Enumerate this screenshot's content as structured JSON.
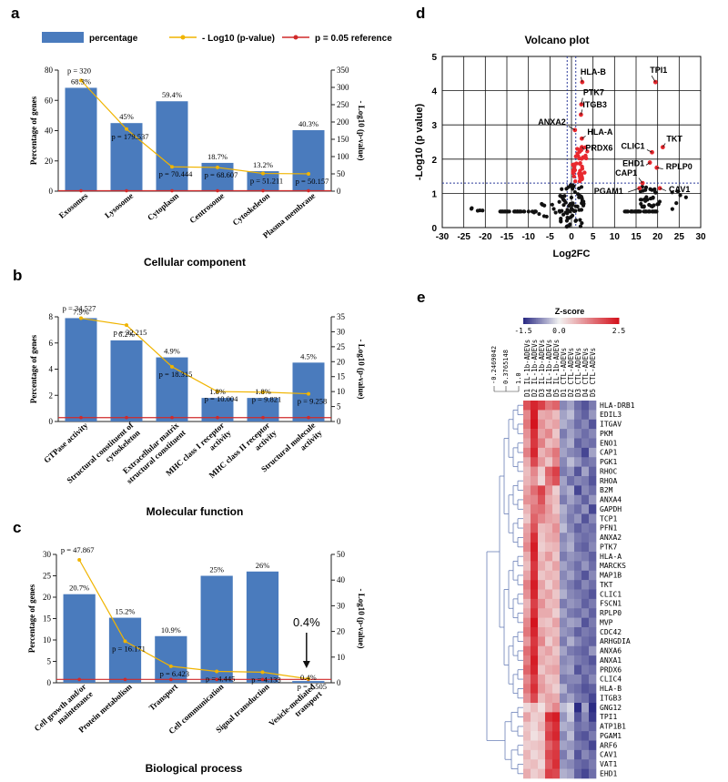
{
  "chart_data": [
    {
      "panel": "a",
      "type": "bar",
      "xlabel": "Cellular component",
      "ylabel": "Percentage of genes",
      "y2label": "- Log10 (p-value)",
      "ylim": [
        0,
        80
      ],
      "y2lim": [
        0,
        350
      ],
      "yticks": [
        0,
        20,
        40,
        60,
        80
      ],
      "y2ticks": [
        0,
        50,
        100,
        150,
        200,
        250,
        300,
        350
      ],
      "categories": [
        "Exosomes",
        "Lysosome",
        "Cytoplasm",
        "Centrosome",
        "Cytoskeleton",
        "Plasma membrane"
      ],
      "values": [
        68.3,
        45,
        59.4,
        18.7,
        13.2,
        40.3
      ],
      "value_labels": [
        "68.3%",
        "45%",
        "59.4%",
        "18.7%",
        "13.2%",
        "40.3%"
      ],
      "line": [
        320,
        179.537,
        70.444,
        68.607,
        51.211,
        50.157
      ],
      "line_labels": [
        "p = 320",
        "p = 179.537",
        "p = 70.444",
        "p = 68.607",
        "p = 51.211",
        "p = 50.157"
      ],
      "reference": 1.301,
      "legend": [
        "percentage",
        "- Log10 (p-value)",
        "p = 0.05 reference"
      ]
    },
    {
      "panel": "b",
      "type": "bar",
      "xlabel": "Molecular function",
      "ylabel": "Percentage of genes",
      "y2label": "- Log10 (p-value)",
      "ylim": [
        0,
        8
      ],
      "y2lim": [
        0,
        35
      ],
      "yticks": [
        0,
        2,
        4,
        6,
        8
      ],
      "y2ticks": [
        0,
        5,
        10,
        15,
        20,
        25,
        30,
        35
      ],
      "categories": [
        "GTPase activity",
        "Structural constituent of cytoskeleton",
        "Extracellular matrix structural constituent",
        "MHC class I receptor activity",
        "MHC class II receptor activity",
        "Structural molecule activity"
      ],
      "xtick_lines": [
        [
          "GTPase activity"
        ],
        [
          "Structural constituent of",
          "cytoskeleton"
        ],
        [
          "Extracellular matrix",
          "structural constituent"
        ],
        [
          "MHC class I receptor",
          "activity"
        ],
        [
          "MHC class II receptor",
          "activity"
        ],
        [
          "Structural molecule",
          "activity"
        ]
      ],
      "values": [
        7.9,
        6.2,
        4.9,
        1.8,
        1.8,
        4.5
      ],
      "value_labels": [
        "7.9%",
        "6.2%",
        "4.9%",
        "1.8%",
        "1.8%",
        "4.5%"
      ],
      "line": [
        34.527,
        32.215,
        18.315,
        10.004,
        9.821,
        9.258
      ],
      "line_labels": [
        "p = 34.527",
        "p = 32.215",
        "p = 18.315",
        "p = 10.004",
        "p = 9.821",
        "p = 9.258"
      ],
      "reference": 1.301
    },
    {
      "panel": "c",
      "type": "bar",
      "xlabel": "Biological process",
      "ylabel": "Percentage of genes",
      "y2label": "- Log10 (p-value)",
      "ylim": [
        0,
        30
      ],
      "y2lim": [
        0,
        50
      ],
      "yticks": [
        0,
        5,
        10,
        15,
        20,
        25,
        30
      ],
      "y2ticks": [
        0,
        10,
        20,
        30,
        40,
        50
      ],
      "categories": [
        "Cell growth and/or maintenance",
        "Protein metabolism",
        "Transport",
        "Cell communication",
        "Signal transduction",
        "Vesicle-mediated transport"
      ],
      "xtick_lines": [
        [
          "Cell growth and/or",
          "maintenance"
        ],
        [
          "Protein metabolism"
        ],
        [
          "Transport"
        ],
        [
          "Cell communication"
        ],
        [
          "Signal transduction"
        ],
        [
          "Vesicle-mediated",
          "transport"
        ]
      ],
      "values": [
        20.7,
        15.2,
        10.9,
        25,
        26,
        0.4
      ],
      "value_labels": [
        "20.7%",
        "15.2%",
        "10.9%",
        "25%",
        "26%",
        "0.4%"
      ],
      "line": [
        47.867,
        16.171,
        6.423,
        4.445,
        4.133,
        1.505
      ],
      "line_labels": [
        "p = 47.867",
        "p = 16.171",
        "p = 6.423",
        "p = 4.445",
        "p = 4.133",
        "p = 1.505"
      ],
      "reference": 1.301,
      "callout": "0.4%"
    },
    {
      "panel": "d",
      "type": "scatter",
      "title": "Volcano plot",
      "xlabel": "Log2FC",
      "ylabel": "-Log10 (p value)",
      "xlim": [
        -30,
        30
      ],
      "ylim": [
        0,
        5
      ],
      "xticks": [
        -30,
        -25,
        -20,
        -15,
        -10,
        -5,
        0,
        5,
        10,
        15,
        20,
        25,
        30
      ],
      "yticks": [
        0,
        1,
        2,
        3,
        4,
        5
      ],
      "threshold_y": 1.301,
      "threshold_x": [
        -1,
        1
      ],
      "labeled_points": [
        {
          "label": "HLA-B",
          "x": 2.5,
          "y": 4.25
        },
        {
          "label": "TPI1",
          "x": 19.5,
          "y": 4.25
        },
        {
          "label": "PTK7",
          "x": 2.3,
          "y": 3.6
        },
        {
          "label": "ITGB3",
          "x": 2.2,
          "y": 3.3
        },
        {
          "label": "ANXA2",
          "x": 0.8,
          "y": 2.85
        },
        {
          "label": "HLA-A",
          "x": 2.4,
          "y": 2.6
        },
        {
          "label": "PRDX6",
          "x": 2.4,
          "y": 2.35
        },
        {
          "label": "TKT",
          "x": 21.2,
          "y": 2.35
        },
        {
          "label": "CLIC1",
          "x": 18.7,
          "y": 2.2
        },
        {
          "label": "EHD1",
          "x": 18.2,
          "y": 1.9
        },
        {
          "label": "RPLP0",
          "x": 19.8,
          "y": 1.75
        },
        {
          "label": "CAP1",
          "x": 16.5,
          "y": 1.3
        },
        {
          "label": "PGAM1",
          "x": 15.8,
          "y": 1.15
        },
        {
          "label": "CAV1",
          "x": 20.5,
          "y": 1.15
        }
      ],
      "colors": {
        "significant": "#e8282e",
        "other": "#111111",
        "threshold": "#2b3a9a"
      }
    },
    {
      "panel": "e",
      "type": "heatmap",
      "legend_title": "Z-score",
      "scale_ticks": [
        "-1.5",
        "0.0",
        "2.5"
      ],
      "dendrogram_ticks": [
        "-0.2469042",
        "0.3765148",
        "1.0"
      ],
      "columns": [
        "D1 IL-1b-ADEVs",
        "D2 IL-1b-ADEVs",
        "D3 IL-1b-ADEVs",
        "D4 IL-1b-ADEVs",
        "D5 IL-1b-ADEVs",
        "D1 CTL-ADEVs",
        "D2 CTL-ADEVs",
        "D3 CTL-ADEVs",
        "D4 CTL-ADEVs",
        "D5 CTL-ADEVs"
      ],
      "rows": [
        "HLA-DRB1",
        "EDIL3",
        "ITGAV",
        "PKM",
        "ENO1",
        "CAP1",
        "PGK1",
        "RHOC",
        "RHOA",
        "B2M",
        "ANXA4",
        "GAPDH",
        "TCP1",
        "PFN1",
        "ANXA2",
        "PTK7",
        "HLA-A",
        "MARCKS",
        "MAP1B",
        "TKT",
        "CLIC1",
        "FSCN1",
        "RPLP0",
        "MVP",
        "CDC42",
        "ARHGDIA",
        "ANXA6",
        "ANXA1",
        "PRDX6",
        "CLIC4",
        "HLA-B",
        "ITGB3",
        "GNG12",
        "TPI1",
        "ATP1B1",
        "PGAM1",
        "ARF6",
        "CAV1",
        "VAT1",
        "EHD1"
      ],
      "values": [
        [
          1.8,
          2.3,
          2.0,
          1.4,
          1.6,
          -0.8,
          -0.6,
          -1.0,
          -1.2,
          -0.9
        ],
        [
          1.2,
          2.4,
          0.8,
          0.9,
          0.6,
          -0.6,
          -0.4,
          -0.9,
          -1.1,
          -0.7
        ],
        [
          1.4,
          2.5,
          1.1,
          0.7,
          0.9,
          -0.5,
          -0.7,
          -1.0,
          -0.8,
          -1.2
        ],
        [
          1.1,
          2.2,
          0.9,
          1.2,
          0.5,
          -0.9,
          -0.6,
          -0.8,
          -1.0,
          -0.8
        ],
        [
          0.9,
          2.1,
          1.3,
          0.6,
          0.8,
          -0.7,
          -0.5,
          -1.1,
          -0.9,
          -1.0
        ],
        [
          1.3,
          2.3,
          0.7,
          1.0,
          1.4,
          -0.6,
          -0.8,
          -0.9,
          -1.3,
          -0.6
        ],
        [
          0.8,
          1.9,
          1.0,
          0.5,
          1.2,
          -0.8,
          -0.4,
          -0.7,
          -1.0,
          -0.9
        ],
        [
          0.6,
          1.2,
          0.4,
          1.6,
          2.0,
          -0.9,
          -0.7,
          -1.2,
          -0.6,
          -1.1
        ],
        [
          0.7,
          1.0,
          0.3,
          1.4,
          1.8,
          -0.6,
          -1.0,
          -0.8,
          -0.9,
          -1.2
        ],
        [
          0.9,
          1.5,
          2.0,
          1.1,
          0.4,
          -0.7,
          -0.5,
          -1.3,
          -0.8,
          -1.0
        ],
        [
          1.1,
          1.2,
          1.8,
          0.8,
          0.6,
          -0.9,
          -0.6,
          -0.8,
          -1.1,
          -0.7
        ],
        [
          0.7,
          1.4,
          1.5,
          1.0,
          0.5,
          -0.5,
          -0.8,
          -1.0,
          -0.7,
          -1.3
        ],
        [
          0.5,
          1.6,
          1.2,
          0.9,
          0.8,
          -0.6,
          -0.9,
          -0.7,
          -1.2,
          -0.8
        ],
        [
          0.9,
          1.8,
          0.6,
          0.7,
          1.1,
          -0.4,
          -0.8,
          -1.1,
          -0.9,
          -1.0
        ],
        [
          1.0,
          2.2,
          0.5,
          0.8,
          0.9,
          -0.8,
          -0.6,
          -0.9,
          -1.0,
          -0.9
        ],
        [
          1.2,
          2.4,
          0.4,
          0.6,
          0.7,
          -0.7,
          -0.5,
          -1.0,
          -1.1,
          -0.8
        ],
        [
          0.8,
          2.3,
          0.6,
          1.0,
          0.5,
          -0.9,
          -0.7,
          -0.8,
          -0.9,
          -1.1
        ],
        [
          0.6,
          2.1,
          0.8,
          0.5,
          0.9,
          -0.6,
          -0.8,
          -1.0,
          -0.7,
          -1.0
        ],
        [
          0.9,
          2.2,
          0.5,
          0.7,
          0.6,
          -0.8,
          -0.6,
          -0.9,
          -1.2,
          -0.8
        ],
        [
          1.3,
          2.4,
          0.9,
          0.4,
          0.8,
          -0.7,
          -0.9,
          -1.1,
          -0.8,
          -1.0
        ],
        [
          1.1,
          2.3,
          0.7,
          0.9,
          0.5,
          -0.5,
          -0.8,
          -0.9,
          -1.0,
          -1.2
        ],
        [
          0.7,
          2.0,
          1.1,
          0.6,
          0.7,
          -0.9,
          -0.7,
          -0.8,
          -1.1,
          -0.9
        ],
        [
          0.9,
          2.2,
          0.8,
          0.8,
          0.4,
          -0.6,
          -0.9,
          -1.0,
          -0.8,
          -1.1
        ],
        [
          1.2,
          2.5,
          0.6,
          0.5,
          0.9,
          -0.8,
          -0.6,
          -0.7,
          -1.2,
          -0.9
        ],
        [
          1.4,
          2.3,
          0.9,
          0.7,
          0.6,
          -0.7,
          -0.8,
          -1.1,
          -0.9,
          -1.0
        ],
        [
          1.0,
          2.1,
          1.2,
          0.4,
          0.8,
          -0.9,
          -0.5,
          -0.8,
          -1.0,
          -1.1
        ],
        [
          1.5,
          2.2,
          0.7,
          0.9,
          0.5,
          -0.6,
          -0.9,
          -1.0,
          -1.1,
          -0.7
        ],
        [
          1.3,
          2.4,
          0.8,
          0.6,
          0.7,
          -0.8,
          -0.7,
          -0.9,
          -1.0,
          -1.2
        ],
        [
          1.6,
          2.3,
          0.5,
          0.8,
          0.9,
          -0.7,
          -0.6,
          -1.2,
          -0.9,
          -1.0
        ],
        [
          1.2,
          2.0,
          0.9,
          0.5,
          0.6,
          -0.9,
          -0.8,
          -0.8,
          -1.1,
          -0.8
        ],
        [
          1.4,
          2.2,
          1.0,
          0.7,
          0.4,
          -0.5,
          -0.9,
          -1.0,
          -1.2,
          -1.1
        ],
        [
          1.1,
          1.9,
          0.6,
          0.9,
          0.8,
          -0.8,
          -0.6,
          -0.9,
          -1.0,
          -1.3
        ],
        [
          0.3,
          0.6,
          0.2,
          0.8,
          1.2,
          -0.4,
          -0.2,
          -1.5,
          -0.6,
          -1.6
        ],
        [
          0.9,
          0.4,
          0.5,
          2.2,
          2.4,
          -0.7,
          -0.3,
          -1.2,
          -0.8,
          -1.4
        ],
        [
          0.5,
          0.3,
          0.7,
          1.8,
          2.2,
          -0.5,
          -0.6,
          -1.0,
          -0.9,
          -1.1
        ],
        [
          0.6,
          0.2,
          0.4,
          2.0,
          2.3,
          -0.8,
          -0.4,
          -1.1,
          -1.2,
          -0.9
        ],
        [
          0.4,
          0.5,
          0.6,
          1.6,
          2.0,
          -0.6,
          -0.7,
          -0.9,
          -1.0,
          -1.3
        ],
        [
          0.7,
          0.3,
          0.5,
          1.9,
          2.1,
          -0.9,
          -0.5,
          -1.2,
          -0.8,
          -1.0
        ],
        [
          0.5,
          0.6,
          0.3,
          1.7,
          2.2,
          -0.7,
          -0.8,
          -1.0,
          -1.1,
          -0.9
        ],
        [
          0.8,
          0.4,
          0.6,
          2.0,
          1.9,
          -0.5,
          -0.6,
          -1.1,
          -1.3,
          -1.0
        ]
      ]
    }
  ],
  "colors": {
    "bar": "#4a7bbd",
    "line": "#f0b400",
    "reference": "#d12a2a",
    "heat_low": "#2c2c84",
    "heat_mid": "#f2f2f2",
    "heat_high": "#d4141e"
  }
}
